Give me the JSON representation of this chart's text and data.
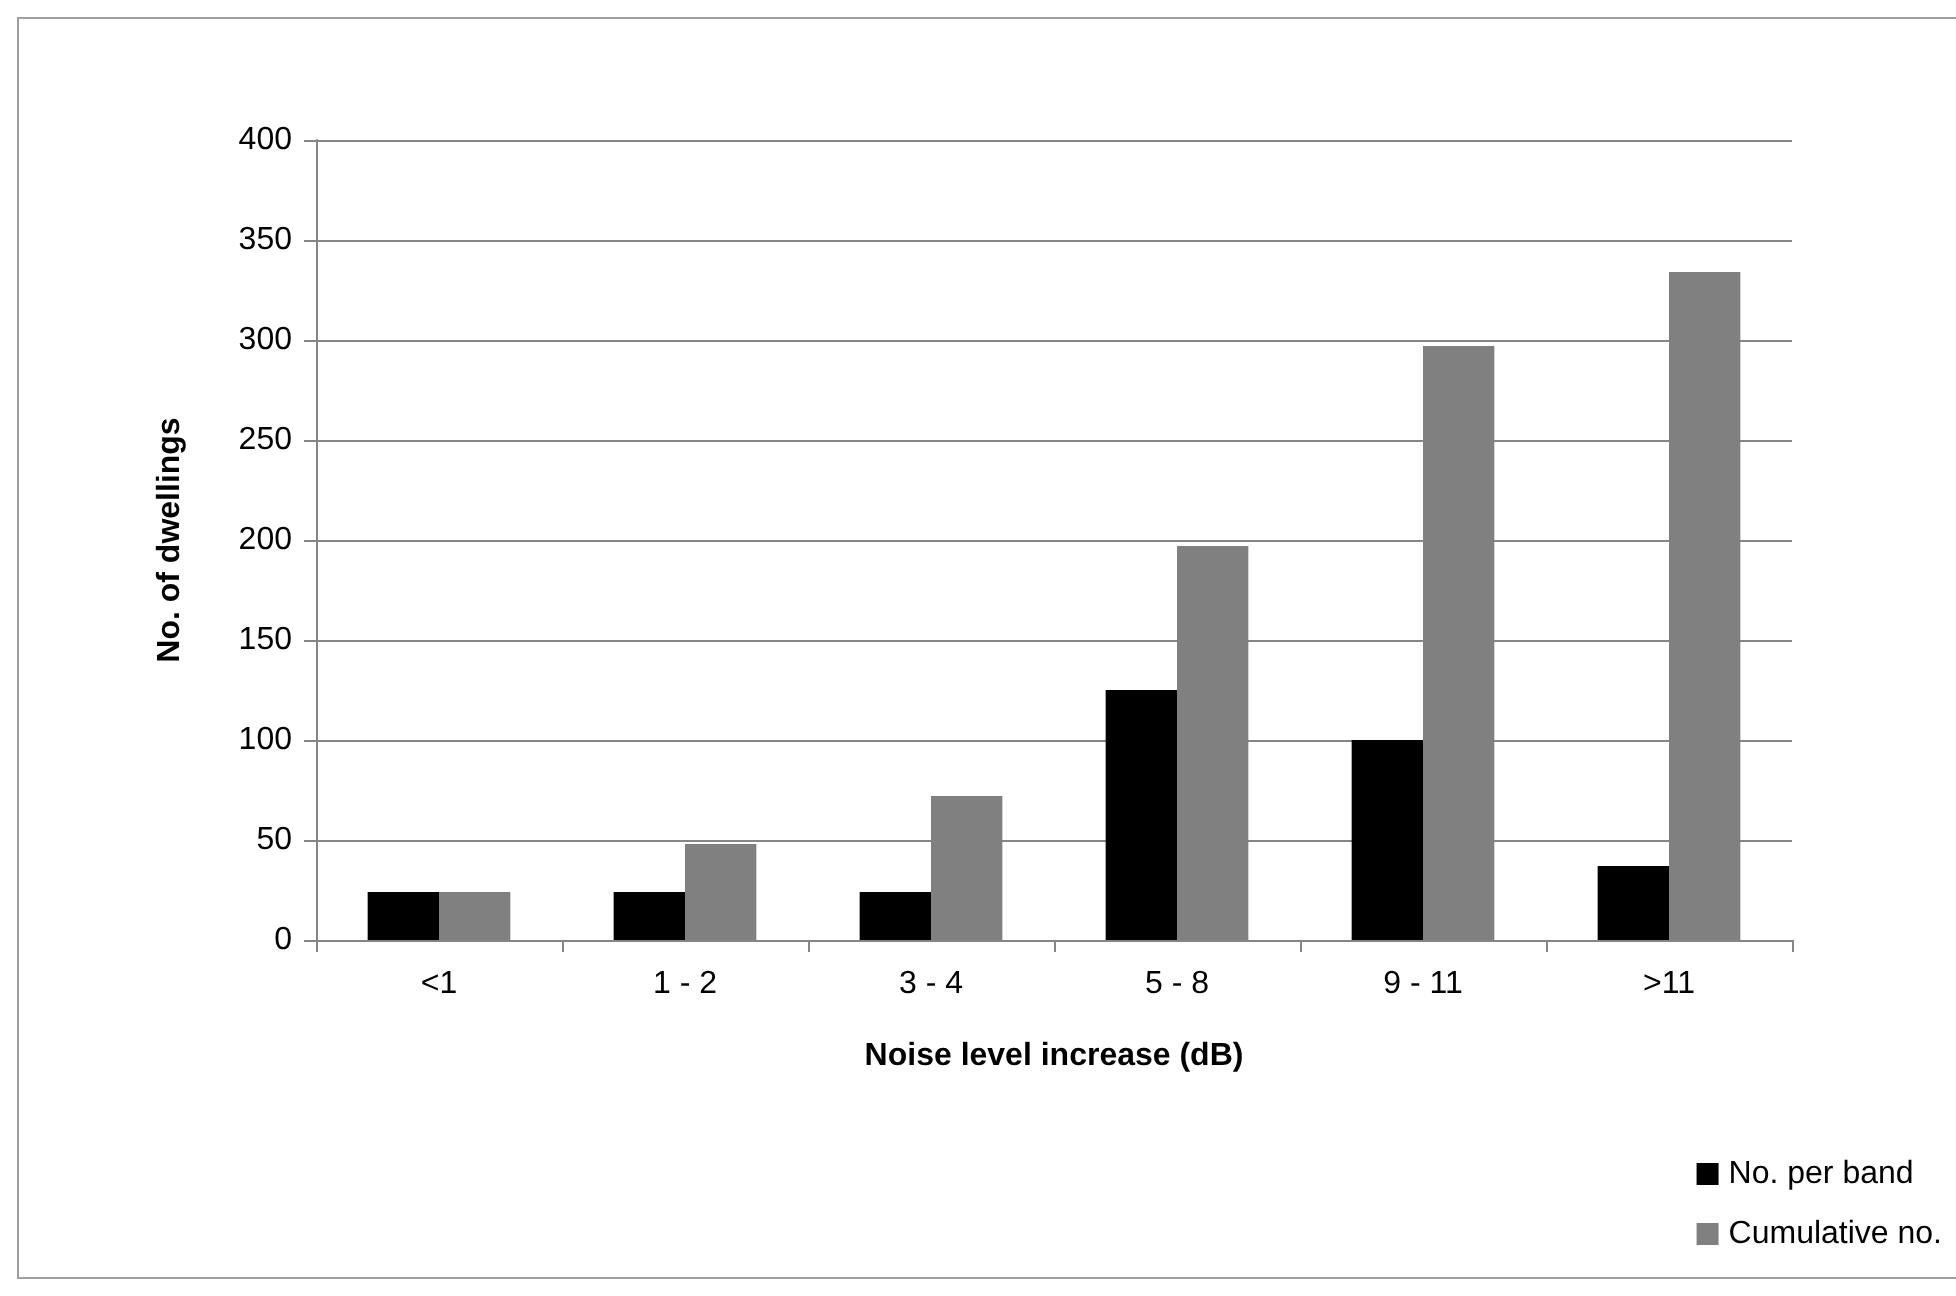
{
  "chart_data": {
    "type": "bar",
    "xlabel": "Noise level increase (dB)",
    "ylabel": "No. of dwellings",
    "categories": [
      "<1",
      "1 - 2",
      "3 - 4",
      "5 - 8",
      "9 - 11",
      ">11"
    ],
    "series": [
      {
        "name": "No. per band",
        "color": "#000000",
        "values": [
          24,
          24,
          24,
          125,
          100,
          37
        ]
      },
      {
        "name": "Cumulative no.",
        "color": "#808080",
        "values": [
          24,
          48,
          72,
          197,
          297,
          334
        ]
      }
    ],
    "ylim": [
      0,
      400
    ],
    "yticks": [
      0,
      50,
      100,
      150,
      200,
      250,
      300,
      350,
      400
    ],
    "grid": "y",
    "legend": "bottom right"
  }
}
